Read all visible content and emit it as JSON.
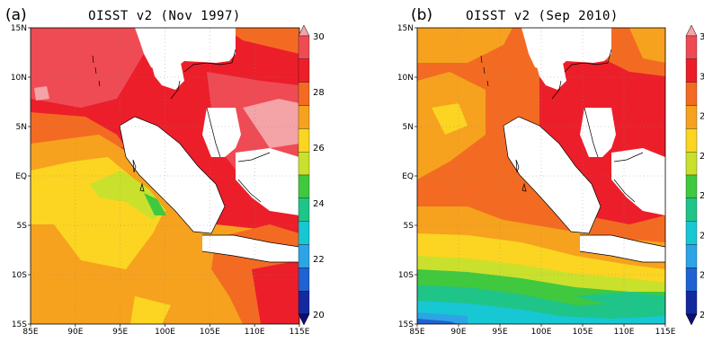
{
  "panels": [
    {
      "label": "(a)",
      "title": "OISST v2 (Nov 1997)",
      "x_ticks": [
        "85E",
        "90E",
        "95E",
        "100E",
        "105E",
        "110E",
        "115E"
      ],
      "y_ticks": [
        "15N",
        "10N",
        "5N",
        "EQ",
        "5S",
        "10S",
        "15S"
      ],
      "colorbar_ticks": [
        "30",
        "28",
        "26",
        "24",
        "22",
        "20"
      ]
    },
    {
      "label": "(b)",
      "title": "OISST v2 (Sep 2010)",
      "x_ticks": [
        "85E",
        "90E",
        "95E",
        "100E",
        "105E",
        "110E",
        "115E"
      ],
      "y_ticks": [
        "15N",
        "10N",
        "5N",
        "EQ",
        "5S",
        "10S",
        "15S"
      ],
      "colorbar_ticks": [
        "3",
        "3",
        "2",
        "2",
        "2",
        "2",
        "2",
        "2"
      ]
    }
  ],
  "colors": {
    "c30": "#f4a3a6",
    "c29": "#ee4b55",
    "c28": "#ec1e2a",
    "c27": "#f36b22",
    "c26": "#f6a21e",
    "c25": "#fbd521",
    "c24": "#c9e12c",
    "c23": "#40c83f",
    "c22": "#1fc489",
    "c21": "#17c7d4",
    "c20": "#2ca4e5",
    "c19": "#1f62d1",
    "c18": "#15299e",
    "c17": "#0b0f73",
    "land": "#ffffff",
    "coast": "#000000"
  }
}
